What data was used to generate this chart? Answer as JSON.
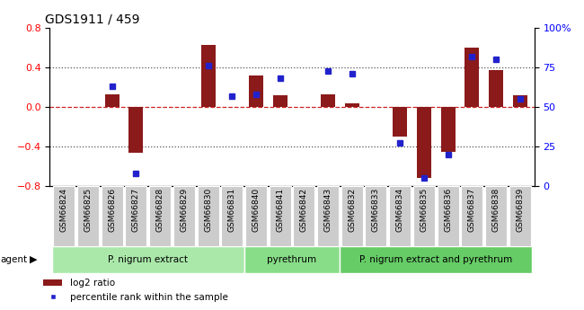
{
  "title": "GDS1911 / 459",
  "samples": [
    "GSM66824",
    "GSM66825",
    "GSM66826",
    "GSM66827",
    "GSM66828",
    "GSM66829",
    "GSM66830",
    "GSM66831",
    "GSM66840",
    "GSM66841",
    "GSM66842",
    "GSM66843",
    "GSM66832",
    "GSM66833",
    "GSM66834",
    "GSM66835",
    "GSM66836",
    "GSM66837",
    "GSM66838",
    "GSM66839"
  ],
  "log2_ratio": [
    0.0,
    0.0,
    0.13,
    -0.46,
    0.0,
    0.0,
    0.63,
    0.0,
    0.32,
    0.12,
    0.0,
    0.13,
    0.04,
    0.0,
    -0.3,
    -0.72,
    -0.45,
    0.6,
    0.37,
    0.12
  ],
  "percentile_rank": [
    null,
    null,
    63,
    8,
    null,
    null,
    76,
    57,
    58,
    68,
    null,
    73,
    71,
    null,
    27,
    5,
    20,
    82,
    80,
    55
  ],
  "group_defs": [
    [
      0,
      7,
      "P. nigrum extract",
      "#aae8aa"
    ],
    [
      8,
      11,
      "pyrethrum",
      "#88dd88"
    ],
    [
      12,
      19,
      "P. nigrum extract and pyrethrum",
      "#66cc66"
    ]
  ],
  "bar_color": "#8b1a1a",
  "dot_color": "#2222cc",
  "ylim_left": [
    -0.8,
    0.8
  ],
  "ylim_right": [
    0,
    100
  ],
  "yticks_left": [
    -0.8,
    -0.4,
    0.0,
    0.4,
    0.8
  ],
  "yticks_right": [
    0,
    25,
    50,
    75,
    100
  ],
  "hline_zero_color": "#cc2222",
  "hline_dotted_color": "#555555",
  "legend_log2": "log2 ratio",
  "legend_pct": "percentile rank within the sample"
}
